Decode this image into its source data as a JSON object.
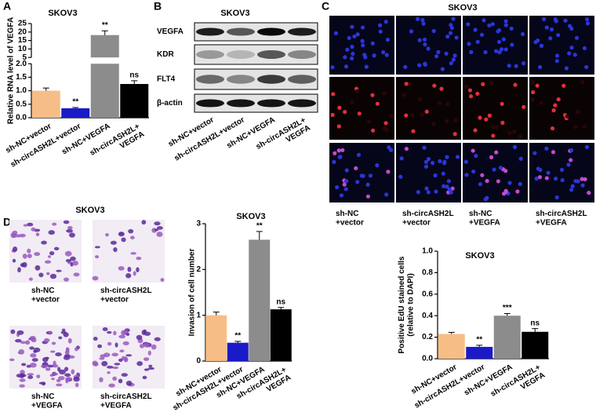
{
  "figure": {
    "panel_letters": [
      "A",
      "B",
      "C",
      "D"
    ],
    "blot": {
      "title": "SKOV3",
      "rows": [
        "VEGFA",
        "KDR",
        "FLT4",
        "β-actin"
      ],
      "lanes": [
        "sh-NC+vector",
        "sh-circASH2L+vector",
        "sh-NC+VEGFA",
        "sh-circASH2L+\nVEGFA"
      ]
    },
    "edu_images": {
      "title": "SKOV3",
      "labels": [
        "sh-NC\n+vector",
        "sh-circASH2L\n+vector",
        "sh-NC\n+VEGFA",
        "sh-circASH2L\n+VEGFA"
      ]
    },
    "invasion_images": {
      "title": "SKOV3",
      "labels": [
        "sh-NC\n+vector",
        "sh-circASH2L\n+vector",
        "sh-NC\n+VEGFA",
        "sh-circASH2L\n+VEGFA"
      ]
    }
  },
  "chart_data": [
    {
      "type": "bar",
      "title": "SKOV3",
      "y_label": "Relative RNA level of VEGFA",
      "categories": [
        "sh-NC+vector",
        "sh-circASH2L+vector",
        "sh-NC+VEGFA",
        "sh-circASH2L+\nVEGFA"
      ],
      "values": [
        1.0,
        0.35,
        18.2,
        1.25
      ],
      "errors": [
        0.1,
        0.03,
        2.5,
        0.12
      ],
      "annotations": [
        null,
        "**",
        "**",
        "ns"
      ],
      "colors": [
        "#f7bd86",
        "#1a1ac8",
        "#8c8c8c",
        "#000000"
      ],
      "ylim": [
        0,
        25
      ],
      "ybreak": [
        2,
        5
      ],
      "yticks": [
        {
          "value": 0,
          "label": "0.0"
        },
        {
          "value": 0.5,
          "label": "0.5"
        },
        {
          "value": 1,
          "label": "1.0"
        },
        {
          "value": 1.5,
          "label": "1.5"
        },
        {
          "value": 2,
          "label": "2.0"
        },
        5,
        10,
        15,
        20,
        25
      ]
    },
    {
      "type": "bar",
      "title": "SKOV3",
      "y_label": "Invasion of cell number",
      "categories": [
        "sh-NC+vector",
        "sh-circASH2L+vector",
        "sh-NC+VEGFA",
        "sh-circASH2L+\nVEGFA"
      ],
      "values": [
        1.0,
        0.4,
        2.65,
        1.13
      ],
      "errors": [
        0.07,
        0.03,
        0.18,
        0.04
      ],
      "annotations": [
        null,
        "**",
        "**",
        "ns"
      ],
      "colors": [
        "#f7bd86",
        "#1a1ac8",
        "#8c8c8c",
        "#000000"
      ],
      "ylim": [
        0,
        3
      ],
      "yticks": [
        0,
        1,
        2,
        3
      ]
    },
    {
      "type": "bar",
      "title": "SKOV3",
      "y_label": "Positive EdU stained cells\n(relative to DAPI)",
      "categories": [
        "sh-NC+vector",
        "sh-circASH2L+vector",
        "sh-NC+VEGFA",
        "sh-circASH2L+\nVEGFA"
      ],
      "values": [
        0.23,
        0.11,
        0.4,
        0.25
      ],
      "errors": [
        0.015,
        0.015,
        0.02,
        0.03
      ],
      "annotations": [
        null,
        "**",
        "***",
        "ns"
      ],
      "colors": [
        "#f7bd86",
        "#1a1ac8",
        "#8c8c8c",
        "#000000"
      ],
      "ylim": [
        0,
        1
      ],
      "yticks": [
        {
          "value": 0,
          "label": "0.0"
        },
        {
          "value": 0.2,
          "label": "0.2"
        },
        {
          "value": 0.4,
          "label": "0.4"
        },
        {
          "value": 0.6,
          "label": "0.6"
        },
        {
          "value": 0.8,
          "label": "0.8"
        },
        {
          "value": 1,
          "label": "1.0"
        }
      ]
    }
  ]
}
